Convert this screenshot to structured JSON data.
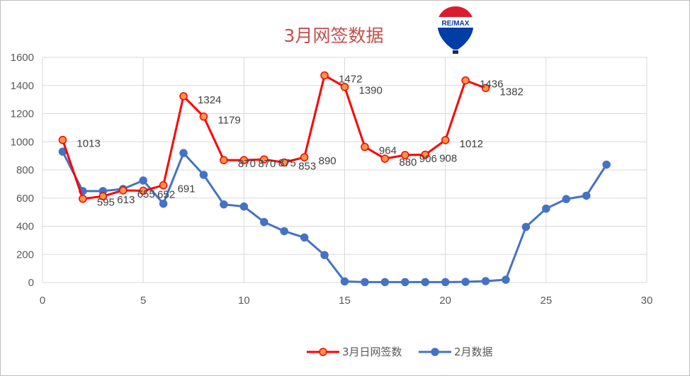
{
  "chart_data": {
    "type": "line",
    "title": "3月网签数据",
    "xlim": [
      0,
      30
    ],
    "ylim": [
      0,
      1600
    ],
    "x_ticks": [
      0,
      5,
      10,
      15,
      20,
      25,
      30
    ],
    "y_ticks": [
      0,
      200,
      400,
      600,
      800,
      1000,
      1200,
      1400,
      1600
    ],
    "grid": "vertical-and-horizontal",
    "legend_position": "bottom",
    "series": [
      {
        "name": "3月日网签数",
        "color": "#ff0000",
        "marker_fill": "#f79646",
        "x": [
          1,
          2,
          3,
          4,
          5,
          6,
          7,
          8,
          9,
          10,
          11,
          12,
          13,
          14,
          15,
          16,
          17,
          18,
          19,
          20,
          21,
          22
        ],
        "values": [
          1013,
          595,
          613,
          655,
          652,
          691,
          1324,
          1179,
          870,
          870,
          875,
          853,
          890,
          1472,
          1390,
          964,
          880,
          906,
          908,
          1012,
          1436,
          1382
        ],
        "labels": [
          "1013",
          "595",
          "613",
          "655",
          "652",
          "691",
          "1324",
          "1179",
          "870",
          "870",
          "875",
          "853",
          "890",
          "1472",
          "1390",
          "964",
          "880",
          "906",
          "908",
          "1012",
          "1436",
          "1382"
        ]
      },
      {
        "name": "2月数据",
        "color": "#4472c4",
        "marker_fill": "#4472c4",
        "x": [
          1,
          2,
          3,
          4,
          5,
          6,
          7,
          8,
          9,
          10,
          11,
          12,
          13,
          14,
          15,
          16,
          17,
          18,
          19,
          20,
          21,
          22,
          23,
          24,
          25,
          26,
          27,
          28
        ],
        "values": [
          930,
          650,
          650,
          665,
          725,
          560,
          920,
          765,
          555,
          540,
          430,
          365,
          320,
          195,
          8,
          3,
          3,
          3,
          3,
          3,
          5,
          10,
          20,
          395,
          525,
          593,
          617,
          838
        ]
      }
    ]
  },
  "logo": {
    "text": "RE/MAX",
    "colors": {
      "red": "#dc1c2e",
      "blue": "#003da5",
      "white": "#ffffff"
    }
  }
}
